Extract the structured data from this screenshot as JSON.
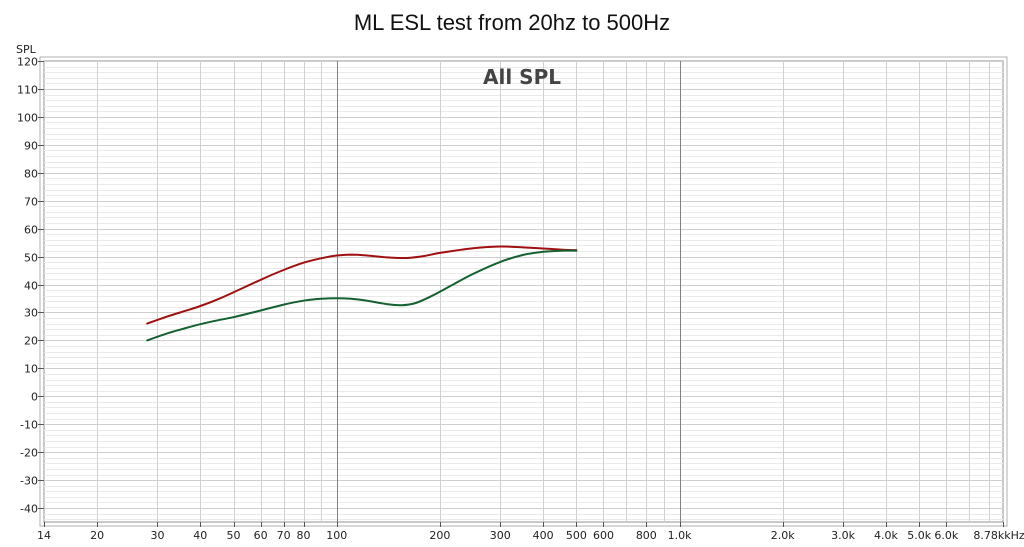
{
  "chart_data": {
    "type": "line",
    "title": "ML ESL test from 20hz to 500Hz",
    "subtitle": "All SPL",
    "ylabel": "SPL",
    "xlabel": "",
    "x_unit_label": "kHz",
    "x_scale": "log",
    "xlim": [
      14,
      8780
    ],
    "ylim": [
      -45,
      120
    ],
    "grid": true,
    "y_ticks": [
      120,
      110,
      100,
      90,
      80,
      70,
      60,
      50,
      40,
      30,
      20,
      10,
      0,
      -10,
      -20,
      -30,
      -40
    ],
    "x_ticks": [
      {
        "value": 14,
        "label": "14"
      },
      {
        "value": 20,
        "label": "20"
      },
      {
        "value": 30,
        "label": "30"
      },
      {
        "value": 40,
        "label": "40"
      },
      {
        "value": 50,
        "label": "50"
      },
      {
        "value": 60,
        "label": "60"
      },
      {
        "value": 70,
        "label": "70"
      },
      {
        "value": 80,
        "label": "80"
      },
      {
        "value": 100,
        "label": "100"
      },
      {
        "value": 200,
        "label": "200"
      },
      {
        "value": 300,
        "label": "300"
      },
      {
        "value": 400,
        "label": "400"
      },
      {
        "value": 500,
        "label": "500"
      },
      {
        "value": 600,
        "label": "600"
      },
      {
        "value": 800,
        "label": "800"
      },
      {
        "value": 1000,
        "label": "1.0k"
      },
      {
        "value": 2000,
        "label": "2.0k"
      },
      {
        "value": 3000,
        "label": "3.0k"
      },
      {
        "value": 4000,
        "label": "4.0k"
      },
      {
        "value": 5000,
        "label": "5.0k"
      },
      {
        "value": 6000,
        "label": "6.0k"
      },
      {
        "value": 8780,
        "label": "8.78k"
      }
    ],
    "series": [
      {
        "color": "#a01010",
        "x": [
          28,
          32,
          36,
          40,
          45,
          50,
          60,
          70,
          80,
          90,
          100,
          110,
          120,
          140,
          160,
          180,
          200,
          250,
          300,
          350,
          400,
          450,
          500
        ],
        "y": [
          26,
          28.5,
          30.5,
          32.3,
          34.7,
          37.2,
          41.7,
          45.2,
          47.8,
          49.4,
          50.4,
          50.7,
          50.5,
          49.7,
          49.5,
          50.2,
          51.3,
          53.0,
          53.6,
          53.3,
          52.9,
          52.5,
          52.3
        ]
      },
      {
        "color": "#146030",
        "x": [
          28,
          32,
          36,
          40,
          45,
          50,
          60,
          70,
          80,
          90,
          100,
          110,
          120,
          140,
          155,
          170,
          190,
          220,
          250,
          300,
          350,
          400,
          450,
          500
        ],
        "y": [
          20,
          22.5,
          24.3,
          25.8,
          27.2,
          28.3,
          30.7,
          32.8,
          34.2,
          34.9,
          35.1,
          34.9,
          34.4,
          33.0,
          32.6,
          33.4,
          36.0,
          40.2,
          43.8,
          48.1,
          50.6,
          51.7,
          52.1,
          52.1
        ]
      }
    ]
  }
}
